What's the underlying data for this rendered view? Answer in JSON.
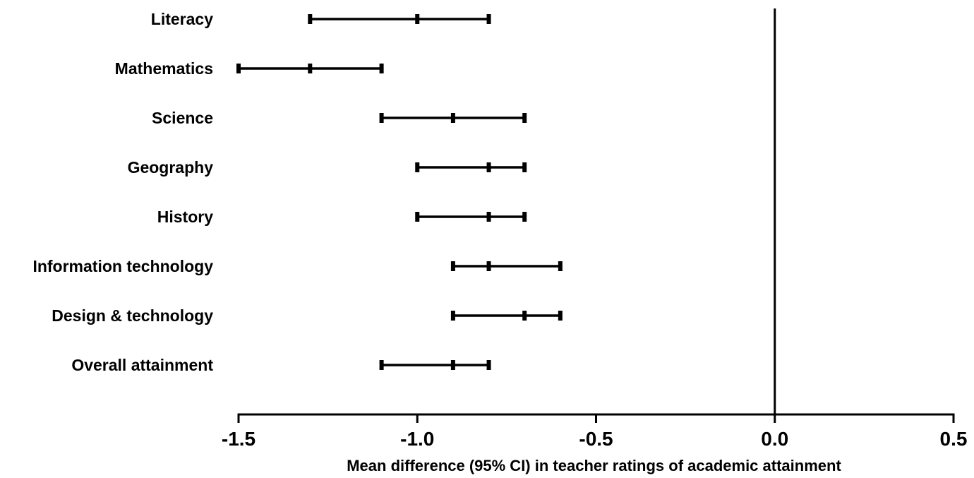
{
  "chart_data": {
    "type": "forest",
    "title": "",
    "xlabel": "Mean difference (95% CI) in teacher ratings of academic attainment",
    "ylabel": "",
    "xlim": [
      -1.5,
      0.5
    ],
    "xticks": [
      -1.5,
      -1.0,
      -0.5,
      0.0,
      0.5
    ],
    "xtick_labels": [
      "-1.5",
      "-1.0",
      "-0.5",
      "0.0",
      "0.5"
    ],
    "reference_line": 0.0,
    "grid": false,
    "categories": [
      "Literacy",
      "Mathematics",
      "Science",
      "Geography",
      "History",
      "Information technology",
      "Design & technology",
      "Overall attainment"
    ],
    "series": [
      {
        "mean": [
          -1.0,
          -1.3,
          -0.9,
          -0.8,
          -0.8,
          -0.8,
          -0.7,
          -0.9
        ],
        "lower": [
          -1.3,
          -1.5,
          -1.1,
          -1.0,
          -1.0,
          -0.9,
          -0.9,
          -1.1
        ],
        "upper": [
          -0.8,
          -1.1,
          -0.7,
          -0.7,
          -0.7,
          -0.6,
          -0.6,
          -0.8
        ]
      }
    ]
  }
}
